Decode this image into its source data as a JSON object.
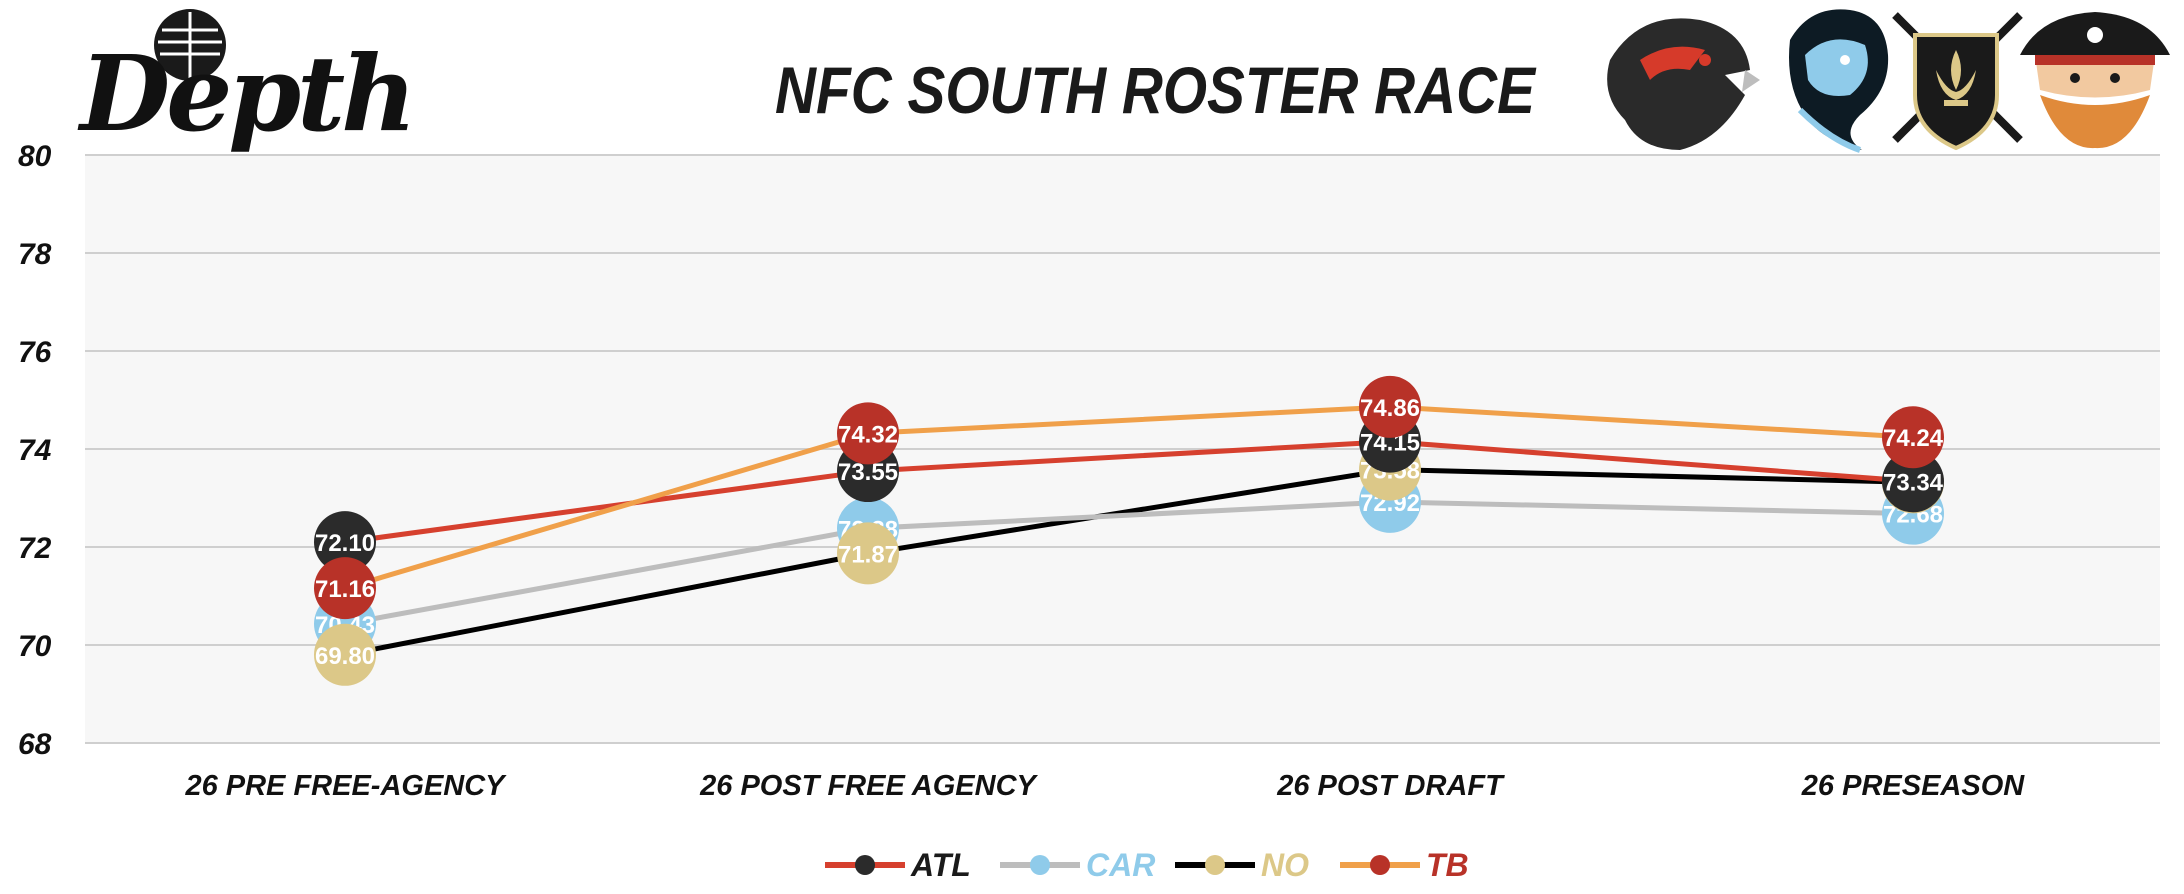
{
  "brand": {
    "logo_text": "Depth",
    "icon": "microphone-icon"
  },
  "team_logos": [
    {
      "team": "ATL",
      "icon": "falcon-logo-icon"
    },
    {
      "team": "CAR",
      "icon": "panther-logo-icon"
    },
    {
      "team": "NO",
      "icon": "fleur-de-lis-shield-logo-icon"
    },
    {
      "team": "TB",
      "icon": "pirate-logo-icon"
    }
  ],
  "chart_data": {
    "type": "line",
    "title": "NFC SOUTH ROSTER RACE",
    "categories": [
      "26 PRE FREE-AGENCY",
      "26 POST FREE AGENCY",
      "26 POST DRAFT",
      "26 PRESEASON"
    ],
    "ylim": [
      68,
      80
    ],
    "yticks": [
      68,
      70,
      72,
      74,
      76,
      78,
      80
    ],
    "grid": true,
    "legend_position": "bottom-center",
    "series": [
      {
        "name": "ATL",
        "values": [
          72.1,
          73.55,
          74.15,
          73.34
        ],
        "labels": [
          "72.10",
          "73.55",
          "74.15",
          "73.34"
        ],
        "line_color": "#d6402e",
        "marker_color": "#2b2b2b",
        "legend_text_color": "#1a1a1a"
      },
      {
        "name": "CAR",
        "values": [
          70.43,
          72.38,
          72.92,
          72.68
        ],
        "labels": [
          "70.43",
          "72.38",
          "72.92",
          "72.68"
        ],
        "line_color": "#bdbdbd",
        "marker_color": "#8fcbea",
        "legend_text_color": "#8fcbea"
      },
      {
        "name": "NO",
        "values": [
          69.8,
          71.87,
          73.58,
          73.32
        ],
        "labels": [
          "69.80",
          "71.87",
          "73.58",
          "73.32"
        ],
        "line_color": "#000000",
        "marker_color": "#dcc888",
        "legend_text_color": "#dcc888"
      },
      {
        "name": "TB",
        "values": [
          71.16,
          74.32,
          74.86,
          74.24
        ],
        "labels": [
          "71.16",
          "74.32",
          "74.86",
          "74.24"
        ],
        "line_color": "#f0a04a",
        "marker_color": "#b83228",
        "legend_text_color": "#b83228"
      }
    ]
  }
}
